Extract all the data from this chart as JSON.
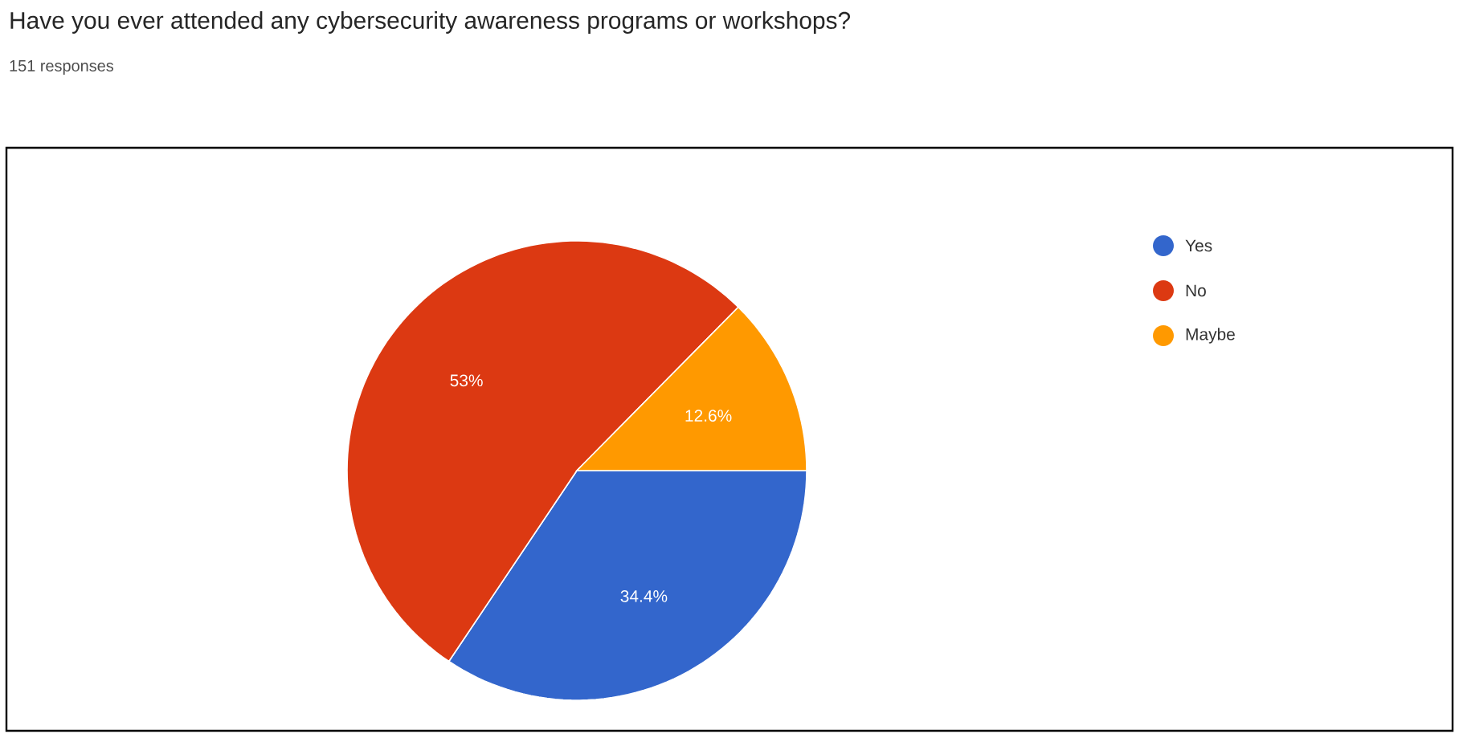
{
  "chart_data": {
    "type": "pie",
    "title": "Have you ever attended any cybersecurity awareness programs or workshops?",
    "subtitle": "151 responses",
    "categories": [
      "Yes",
      "No",
      "Maybe"
    ],
    "values": [
      34.4,
      53,
      12.6
    ],
    "colors": [
      "#3366cc",
      "#dc3912",
      "#ff9900"
    ],
    "value_labels": [
      "34.4%",
      "53%",
      "12.6%"
    ],
    "legend": "top right"
  }
}
